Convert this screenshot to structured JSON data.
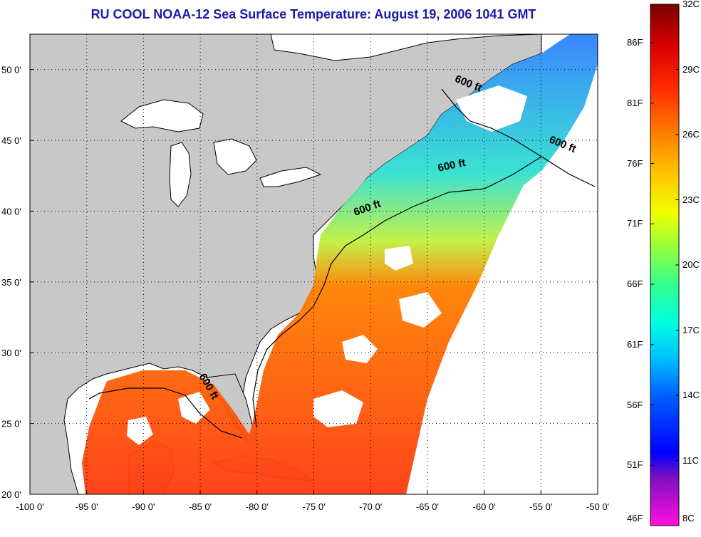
{
  "title": "RU COOL  NOAA-12  Sea Surface Temperature:  August 19, 2006 1041 GMT",
  "map": {
    "lon_range": [
      -100,
      -50
    ],
    "lat_range": [
      20,
      52.5
    ],
    "lon_ticks": [
      "-100 0'",
      "-95 0'",
      "-90 0'",
      "-85 0'",
      "-80 0'",
      "-75 0'",
      "-70 0'",
      "-65 0'",
      "-60 0'",
      "-55 0'",
      "-50 0'"
    ],
    "lat_ticks": [
      "20 0'",
      "25 0'",
      "30 0'",
      "35 0'",
      "40 0'",
      "45 0'",
      "50 0'"
    ],
    "contour_labels": [
      {
        "text": "600 ft",
        "lon": -61.5,
        "lat": 48.8
      },
      {
        "text": "600 ft",
        "lon": -53.2,
        "lat": 44.5
      },
      {
        "text": "600 ft",
        "lon": -62.8,
        "lat": 43.0
      },
      {
        "text": "600 ft",
        "lon": -70.2,
        "lat": 40.0
      },
      {
        "text": "600 ft",
        "lon": -84.5,
        "lat": 27.5
      }
    ],
    "colors": {
      "land": "#c8c8c8",
      "cloud": "#ffffff",
      "coast": "#000000"
    }
  },
  "colorbar": {
    "celsius_labels": [
      "32C",
      "29C",
      "26C",
      "23C",
      "20C",
      "17C",
      "14C",
      "11C",
      "8C"
    ],
    "fahrenheit_labels": [
      "86F",
      "81F",
      "76F",
      "71F",
      "66F",
      "61F",
      "56F",
      "51F",
      "46F"
    ],
    "colors": [
      "#800000",
      "#e00000",
      "#ff3000",
      "#ff8000",
      "#ffc000",
      "#f0ff00",
      "#a0ff40",
      "#40ff90",
      "#00ffd0",
      "#00d0ff",
      "#0080ff",
      "#0000ff",
      "#8000c0",
      "#ff40c0",
      "#ff00ff"
    ]
  }
}
